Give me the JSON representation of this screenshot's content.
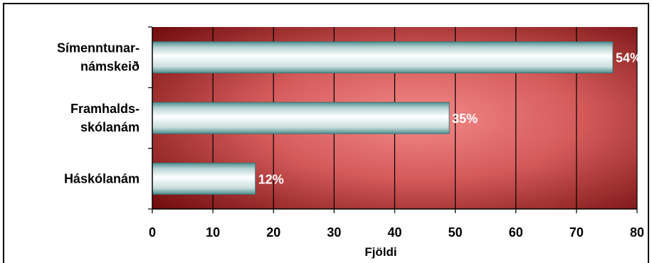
{
  "chart_data": {
    "type": "bar",
    "orientation": "horizontal",
    "categories": [
      [
        "Símenntunar-",
        "námskeið"
      ],
      [
        "Framhalds-",
        "skólanám"
      ],
      [
        "Háskólanám"
      ]
    ],
    "values": [
      76,
      49,
      17
    ],
    "data_labels": [
      "54%",
      "35%",
      "12%"
    ],
    "xlabel": "Fjöldi",
    "ylabel": "",
    "xlim": [
      0,
      80
    ],
    "xticks": [
      "0",
      "10",
      "20",
      "30",
      "40",
      "50",
      "60",
      "70",
      "80"
    ],
    "grid": "vertical",
    "legend": "none",
    "colors": {
      "plot_edge": "#6e0a0a",
      "plot_center": "#f48a8a",
      "bar_light": "#ffffff",
      "bar_dark": "#4f8f8f",
      "grid": "#000000"
    }
  }
}
